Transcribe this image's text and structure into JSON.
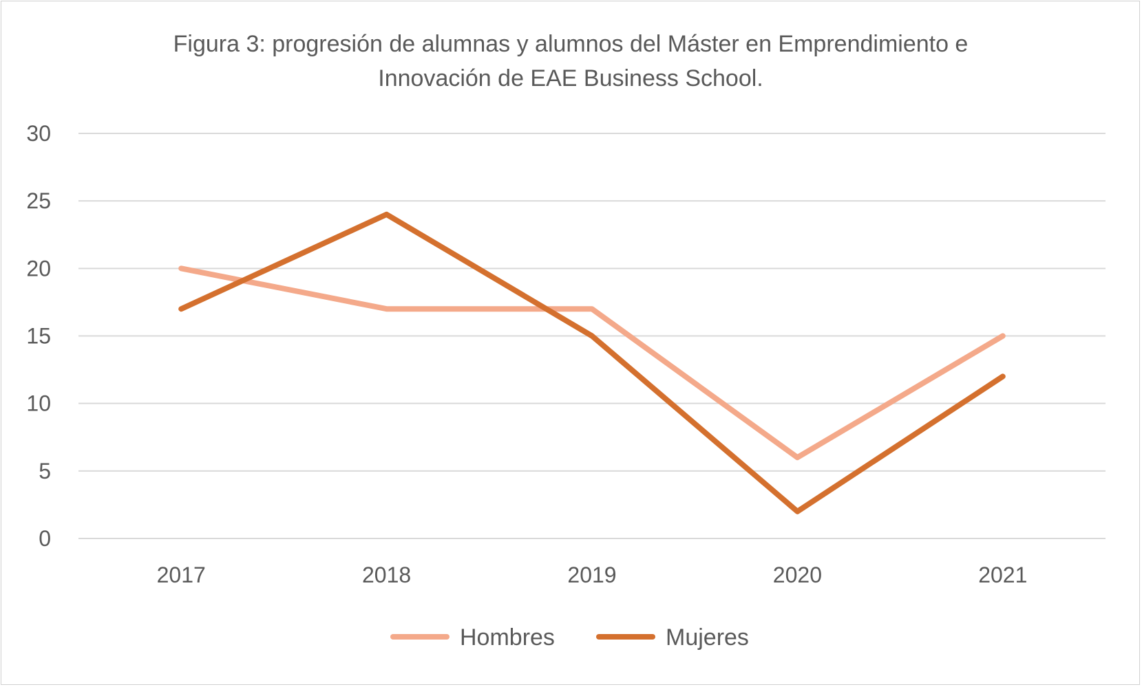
{
  "chart_data": {
    "type": "line",
    "title": "Figura 3: progresión de alumnas y alumnos del Máster en Emprendimiento e Innovación de EAE Business School.",
    "title_lines": [
      "Figura 3: progresión de alumnas y alumnos del Máster en Emprendimiento e",
      "Innovación de EAE Business School."
    ],
    "categories": [
      "2017",
      "2018",
      "2019",
      "2020",
      "2021"
    ],
    "series": [
      {
        "name": "Hombres",
        "values": [
          20,
          17,
          17,
          6,
          15
        ],
        "color": "#F4A98A"
      },
      {
        "name": "Mujeres",
        "values": [
          17,
          24,
          15,
          2,
          12
        ],
        "color": "#D4702E"
      }
    ],
    "ylim": [
      0,
      30
    ],
    "yticks": [
      "0",
      "5",
      "10",
      "15",
      "20",
      "25",
      "30"
    ],
    "xlabel": "",
    "ylabel": "",
    "grid": true,
    "legend": "bottom"
  }
}
